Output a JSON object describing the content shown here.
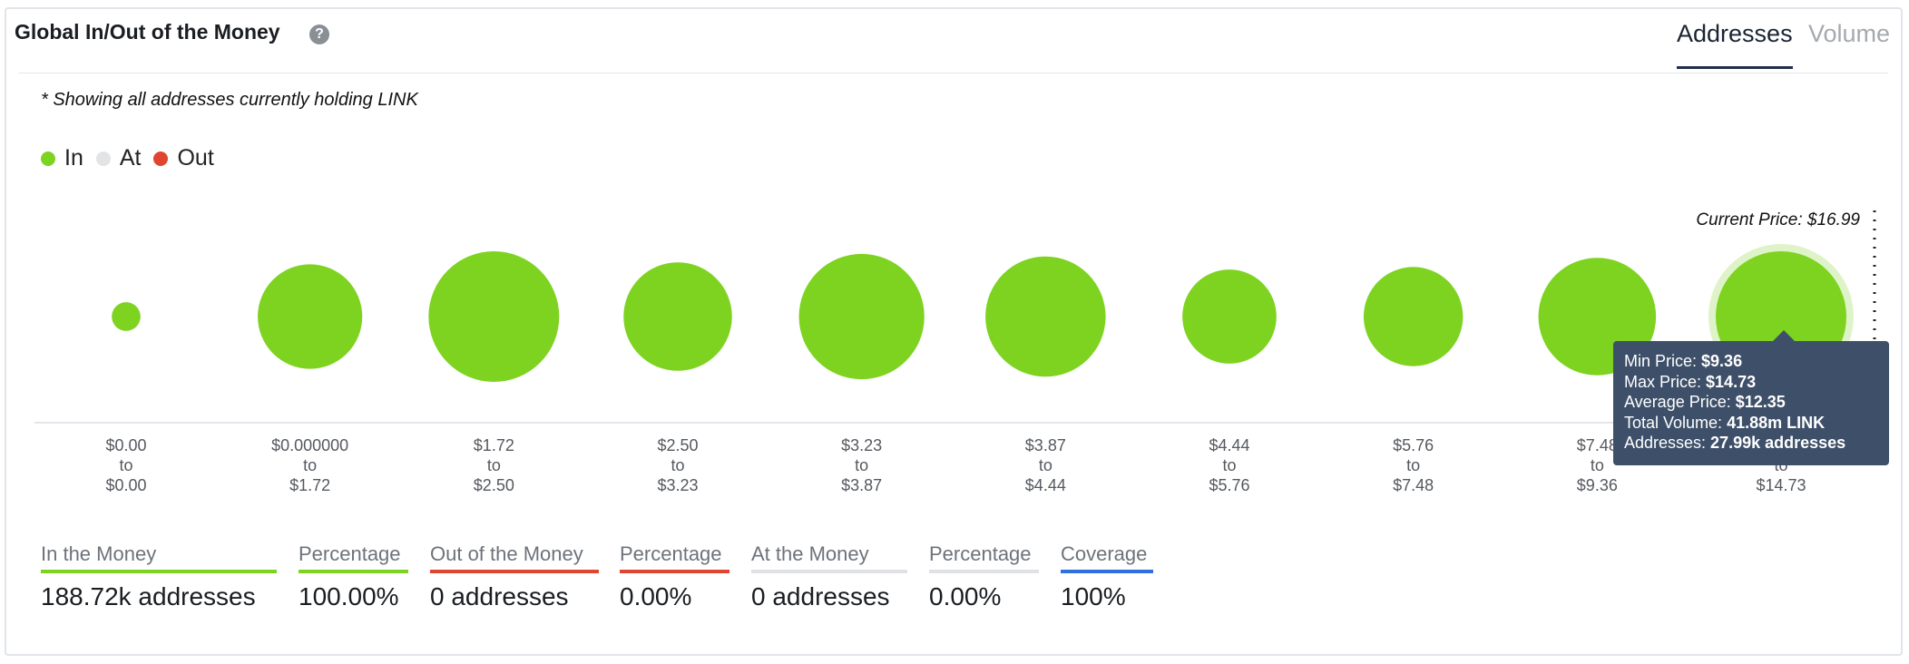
{
  "header": {
    "title": "Global In/Out of the Money",
    "help_icon": "question-circle-icon",
    "help_glyph": "?",
    "tabs": [
      {
        "label": "Addresses",
        "active": true
      },
      {
        "label": "Volume",
        "active": false
      }
    ]
  },
  "note": "* Showing all addresses currently holding LINK",
  "legend": [
    {
      "label": "In",
      "color": "#7ed321"
    },
    {
      "label": "At",
      "color": "#e2e4e6"
    },
    {
      "label": "Out",
      "color": "#e0462f"
    }
  ],
  "current_price_label": "Current Price: $16.99",
  "tooltip": {
    "min_label": "Min Price: ",
    "min_value": "$9.36",
    "max_label": "Max Price: ",
    "max_value": "$14.73",
    "avg_label": "Average Price: ",
    "avg_value": "$12.35",
    "vol_label": "Total Volume: ",
    "vol_value": "41.88m LINK",
    "addr_label": "Addresses: ",
    "addr_value": "27.99k addresses"
  },
  "chart_data": {
    "type": "bubble",
    "status": "In",
    "color": "#7ed321",
    "buckets": [
      {
        "from": "$0.00",
        "to": "$0.00",
        "size": 0.22
      },
      {
        "from": "$0.000000",
        "to": "$1.72",
        "size": 0.8
      },
      {
        "from": "$1.72",
        "to": "$2.50",
        "size": 1.0
      },
      {
        "from": "$2.50",
        "to": "$3.23",
        "size": 0.83
      },
      {
        "from": "$3.23",
        "to": "$3.87",
        "size": 0.96
      },
      {
        "from": "$3.87",
        "to": "$4.44",
        "size": 0.92
      },
      {
        "from": "$4.44",
        "to": "$5.76",
        "size": 0.72
      },
      {
        "from": "$5.76",
        "to": "$7.48",
        "size": 0.76
      },
      {
        "from": "$7.48",
        "to": "$9.36",
        "size": 0.9
      },
      {
        "from": "$9.36",
        "to": "$14.73",
        "size": 1.0,
        "highlighted": true
      }
    ],
    "range_connector": "to"
  },
  "stats": [
    {
      "label": "In the Money",
      "value": "188.72k addresses",
      "color": "#7ed321"
    },
    {
      "label": "Percentage",
      "value": "100.00%",
      "color": "#7ed321"
    },
    {
      "label": "Out of the Money",
      "value": "0 addresses",
      "color": "#e0462f"
    },
    {
      "label": "Percentage",
      "value": "0.00%",
      "color": "#e0462f"
    },
    {
      "label": "At the Money",
      "value": "0 addresses",
      "color": "#dfe1e4"
    },
    {
      "label": "Percentage",
      "value": "0.00%",
      "color": "#dfe1e4"
    },
    {
      "label": "Coverage",
      "value": "100%",
      "color": "#2f6fe0"
    }
  ]
}
